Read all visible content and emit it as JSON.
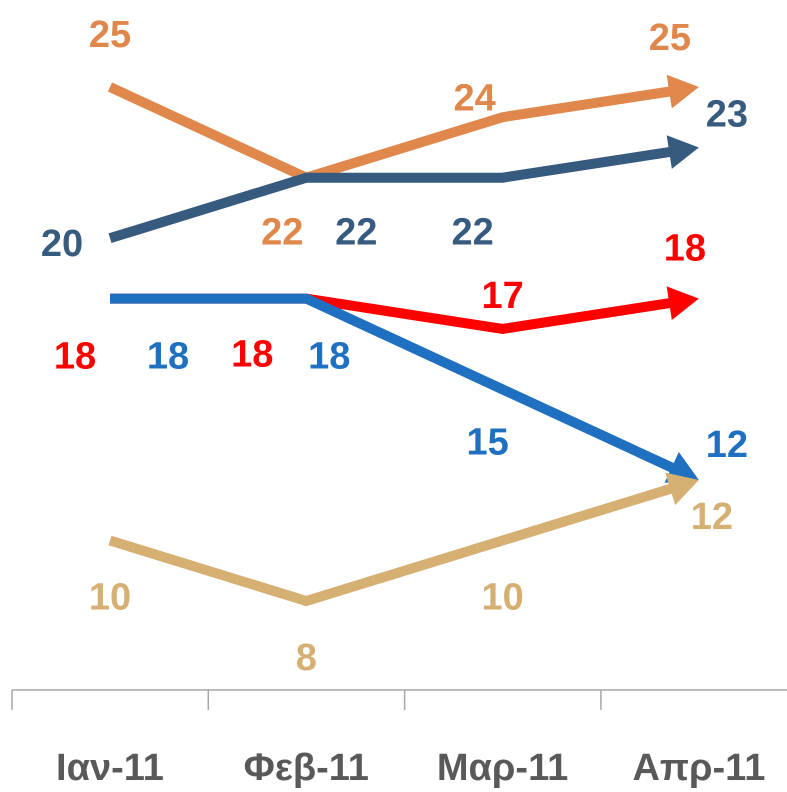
{
  "chart_data": {
    "type": "line",
    "categories": [
      "Ιαν-11",
      "Φεβ-11",
      "Μαρ-11",
      "Απρ-11"
    ],
    "series": [
      {
        "color": "#e0874b",
        "values": [
          25,
          22,
          24,
          25
        ]
      },
      {
        "color": "#375a7f",
        "values": [
          20,
          22,
          22,
          23
        ]
      },
      {
        "color": "#ff0000",
        "values": [
          18,
          18,
          17,
          18
        ]
      },
      {
        "color": "#1f70c1",
        "values": [
          18,
          18,
          15,
          12
        ]
      },
      {
        "color": "#d5b072",
        "values": [
          10,
          8,
          10,
          12
        ]
      }
    ]
  }
}
